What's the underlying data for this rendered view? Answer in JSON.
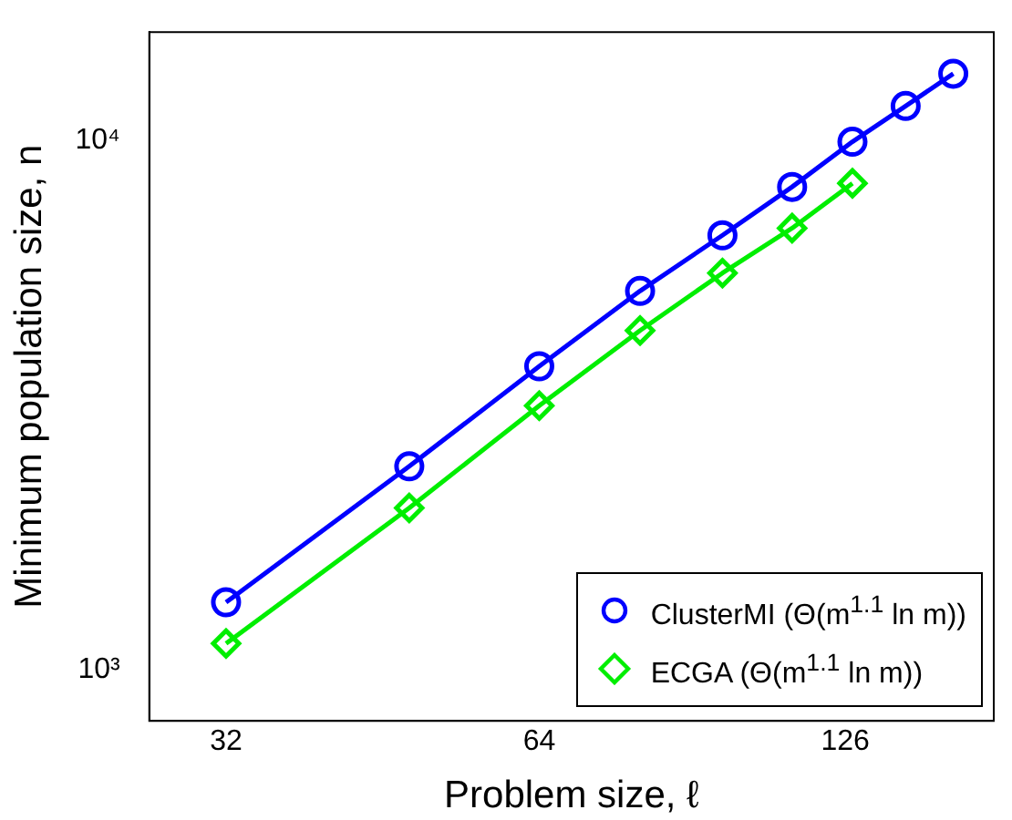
{
  "chart_data": {
    "type": "line",
    "xlabel": "Problem size, ℓ",
    "ylabel": "Minimum population size, n",
    "log": "xy",
    "grid": false,
    "legend": "bottom right",
    "line_style": "solid",
    "xlim": [
      27,
      175
    ],
    "xticks": [
      32,
      64,
      126
    ],
    "ylim": [
      800,
      16000
    ],
    "yticks": [
      {
        "value": 1000,
        "label": "10³"
      },
      {
        "value": 10000,
        "label": "10⁴"
      }
    ],
    "series": [
      {
        "name": "ClusterMI (Θ(m$^{1.1}$ ln m))",
        "color": "#0000ff",
        "marker": "circle",
        "x": [
          32,
          48,
          64,
          80,
          96,
          112,
          128,
          144,
          160
        ],
        "values": [
          1340,
          2420,
          3740,
          5190,
          6610,
          8160,
          9930,
          11600,
          13350
        ]
      },
      {
        "name": "ECGA (Θ(m$^{1.1}$ ln m))",
        "color": "#00ee00",
        "marker": "diamond",
        "x": [
          32,
          48,
          64,
          80,
          96,
          112,
          128
        ],
        "values": [
          1120,
          2020,
          3150,
          4370,
          5610,
          6820,
          8290
        ]
      }
    ]
  }
}
